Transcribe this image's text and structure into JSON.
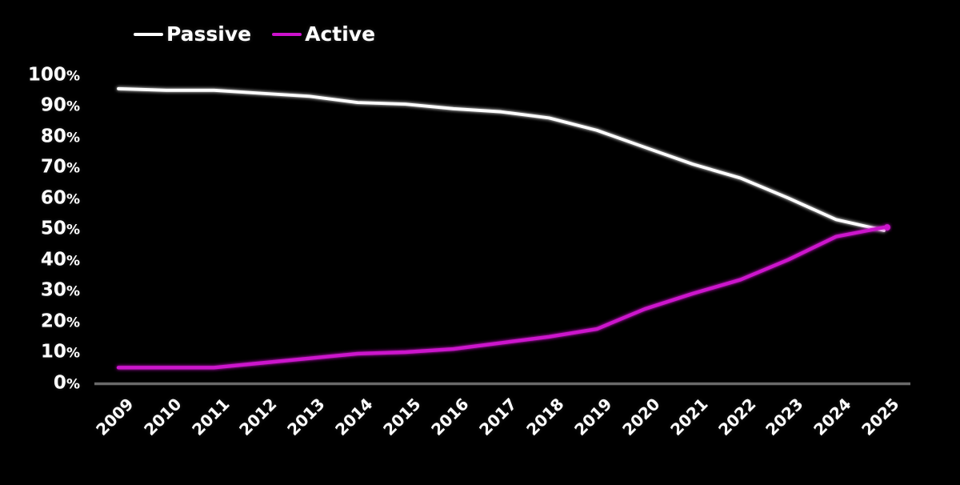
{
  "chart_data": {
    "type": "line",
    "title": "",
    "background_color": "#000000",
    "axis_color": "#6a6a6a",
    "text_color": "#ffffff",
    "grid": false,
    "legend_position": "top-left",
    "x_categories": [
      "2009",
      "2010",
      "2011",
      "2012",
      "2013",
      "2014",
      "2015",
      "2016",
      "2017",
      "2018",
      "2019",
      "2020",
      "2021",
      "2022",
      "2023",
      "2024",
      "2025"
    ],
    "ylim": [
      0,
      100
    ],
    "yticks": [
      {
        "label": "100%",
        "value": 100
      },
      {
        "label": "90%",
        "value": 90
      },
      {
        "label": "80%",
        "value": 80
      },
      {
        "label": "70%",
        "value": 70
      },
      {
        "label": "60%",
        "value": 60
      },
      {
        "label": "50%",
        "value": 50
      },
      {
        "label": "40%",
        "value": 40
      },
      {
        "label": "30%",
        "value": 30
      },
      {
        "label": "20%",
        "value": 20
      },
      {
        "label": "10%",
        "value": 10
      },
      {
        "label": "0%",
        "value": 0
      }
    ],
    "series": [
      {
        "name": "Passive",
        "color": "#ffffff",
        "values": [
          95.5,
          95,
          95,
          94,
          93,
          91,
          90.5,
          89,
          88,
          86,
          82,
          76.5,
          71,
          66.5,
          60,
          53,
          49.5
        ]
      },
      {
        "name": "Active",
        "color": "#cc12cc",
        "values": [
          5,
          5,
          5,
          6.5,
          8,
          9.5,
          10,
          11,
          13,
          15,
          17.5,
          24,
          29,
          33.5,
          40,
          47.5,
          50.5
        ]
      }
    ]
  }
}
